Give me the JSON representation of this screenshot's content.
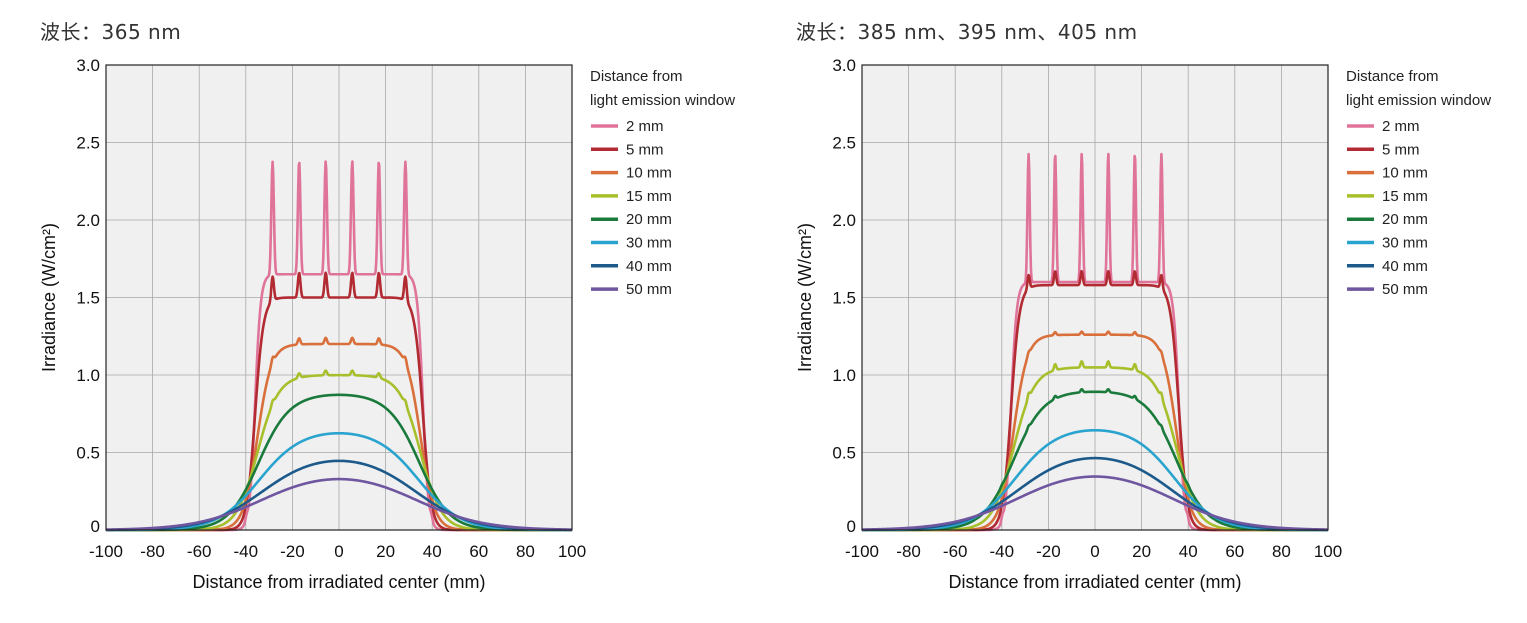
{
  "chart_data": [
    {
      "type": "line",
      "panel_title": "波长：365 nm",
      "xlabel": "Distance from irradiated center (mm)",
      "ylabel": "Irradiance (W/cm²)",
      "xlim": [
        -100,
        100
      ],
      "ylim": [
        0,
        3.0
      ],
      "xticks": [
        -100,
        -80,
        -60,
        -40,
        -20,
        0,
        20,
        40,
        60,
        80,
        100
      ],
      "yticks": [
        0,
        0.5,
        1.0,
        1.5,
        2.0,
        2.5,
        3.0
      ],
      "xtick_labels": [
        "-100",
        "-80",
        "-60",
        "-40",
        "-20",
        "0",
        "20",
        "40",
        "60",
        "80",
        "100"
      ],
      "ytick_labels": [
        "0",
        "0.5",
        "1.0",
        "1.5",
        "2.0",
        "2.5",
        "3.0"
      ],
      "grid": true,
      "legend_title_lines": [
        "Distance from",
        "light emission window"
      ],
      "legend_position": "right",
      "series": [
        {
          "name": "2 mm",
          "color": "#e0739a",
          "peak": 2.38,
          "valley": 1.65,
          "rip": 11,
          "width": 36,
          "soft": 1.2
        },
        {
          "name": "5 mm",
          "color": "#b22a32",
          "peak": 1.66,
          "valley": 1.5,
          "rip": 11,
          "width": 36,
          "soft": 1.8
        },
        {
          "name": "10 mm",
          "color": "#d9703c",
          "peak": 1.24,
          "valley": 1.2,
          "rip": 11,
          "width": 35,
          "soft": 3.0
        },
        {
          "name": "15 mm",
          "color": "#a8bf2c",
          "peak": 1.03,
          "valley": 1.0,
          "rip": 11,
          "width": 35,
          "soft": 4.5
        },
        {
          "name": "20 mm",
          "color": "#1a7a3c",
          "peak": 0.88,
          "valley": 0.87,
          "rip": 0,
          "width": 35,
          "soft": 6.5
        },
        {
          "name": "30 mm",
          "color": "#2aa4cf",
          "peak": 0.65,
          "valley": 0.64,
          "rip": 0,
          "width": 35,
          "soft": 9.0
        },
        {
          "name": "40 mm",
          "color": "#1d5a8c",
          "peak": 0.5,
          "valley": 0.5,
          "rip": 0,
          "width": 34,
          "soft": 12.0
        },
        {
          "name": "50 mm",
          "color": "#6f56a0",
          "peak": 0.4,
          "valley": 0.4,
          "rip": 0,
          "width": 34,
          "soft": 15.0
        }
      ]
    },
    {
      "type": "line",
      "panel_title": "波长：385 nm、395 nm、405 nm",
      "xlabel": "Distance from irradiated center (mm)",
      "ylabel": "Irradiance (W/cm²)",
      "xlim": [
        -100,
        100
      ],
      "ylim": [
        0,
        3.0
      ],
      "xticks": [
        -100,
        -80,
        -60,
        -40,
        -20,
        0,
        20,
        40,
        60,
        80,
        100
      ],
      "yticks": [
        0,
        0.5,
        1.0,
        1.5,
        2.0,
        2.5,
        3.0
      ],
      "xtick_labels": [
        "-100",
        "-80",
        "-60",
        "-40",
        "-20",
        "0",
        "20",
        "40",
        "60",
        "80",
        "100"
      ],
      "ytick_labels": [
        "0",
        "0.5",
        "1.0",
        "1.5",
        "2.0",
        "2.5",
        "3.0"
      ],
      "grid": true,
      "legend_title_lines": [
        "Distance from",
        "light emission window"
      ],
      "legend_position": "right",
      "series": [
        {
          "name": "2 mm",
          "color": "#e0739a",
          "peak": 2.43,
          "valley": 1.6,
          "rip": 14,
          "width": 36,
          "soft": 1.2
        },
        {
          "name": "5 mm",
          "color": "#b22a32",
          "peak": 1.67,
          "valley": 1.58,
          "rip": 14,
          "width": 36,
          "soft": 1.8
        },
        {
          "name": "10 mm",
          "color": "#d9703c",
          "peak": 1.28,
          "valley": 1.26,
          "rip": 14,
          "width": 35,
          "soft": 3.0
        },
        {
          "name": "15 mm",
          "color": "#a8bf2c",
          "peak": 1.09,
          "valley": 1.05,
          "rip": 14,
          "width": 35,
          "soft": 4.5
        },
        {
          "name": "20 mm",
          "color": "#1a7a3c",
          "peak": 0.92,
          "valley": 0.9,
          "rip": 14,
          "width": 35,
          "soft": 6.5
        },
        {
          "name": "30 mm",
          "color": "#2aa4cf",
          "peak": 0.67,
          "valley": 0.66,
          "rip": 0,
          "width": 35,
          "soft": 9.0
        },
        {
          "name": "40 mm",
          "color": "#1d5a8c",
          "peak": 0.52,
          "valley": 0.52,
          "rip": 0,
          "width": 34,
          "soft": 12.0
        },
        {
          "name": "50 mm",
          "color": "#6f56a0",
          "peak": 0.42,
          "valley": 0.42,
          "rip": 0,
          "width": 34,
          "soft": 15.0
        }
      ]
    }
  ]
}
